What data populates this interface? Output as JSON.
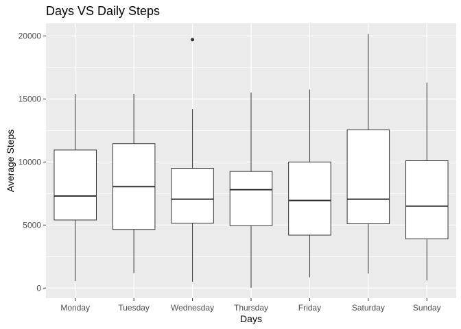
{
  "chart_data": {
    "type": "boxplot",
    "title": "Days VS Daily Steps",
    "xlabel": "Days",
    "ylabel": "Average Steps",
    "ylim": [
      -800,
      21000
    ],
    "yticks": [
      0,
      5000,
      10000,
      15000,
      20000
    ],
    "ytick_labels": [
      "0",
      "5000",
      "10000",
      "15000",
      "20000"
    ],
    "categories": [
      "Monday",
      "Tuesday",
      "Wednesday",
      "Thursday",
      "Friday",
      "Saturday",
      "Sunday"
    ],
    "boxes": [
      {
        "min": 550,
        "q1": 5400,
        "median": 7300,
        "q3": 10950,
        "max": 15400,
        "outliers": []
      },
      {
        "min": 1200,
        "q1": 4650,
        "median": 8050,
        "q3": 11450,
        "max": 15400,
        "outliers": []
      },
      {
        "min": 500,
        "q1": 5150,
        "median": 7050,
        "q3": 9500,
        "max": 14200,
        "outliers": [
          19700
        ]
      },
      {
        "min": 20,
        "q1": 4950,
        "median": 7800,
        "q3": 9250,
        "max": 15500,
        "outliers": []
      },
      {
        "min": 850,
        "q1": 4200,
        "median": 6950,
        "q3": 10000,
        "max": 15750,
        "outliers": []
      },
      {
        "min": 1150,
        "q1": 5100,
        "median": 7050,
        "q3": 12550,
        "max": 20150,
        "outliers": []
      },
      {
        "min": 600,
        "q1": 3900,
        "median": 6500,
        "q3": 10100,
        "max": 16300,
        "outliers": []
      }
    ],
    "panel_background": "#ebebeb",
    "grid": true,
    "grid_color": "#ffffff",
    "box_fill": "#ffffff",
    "line_color": "#333333",
    "legend": "none"
  }
}
